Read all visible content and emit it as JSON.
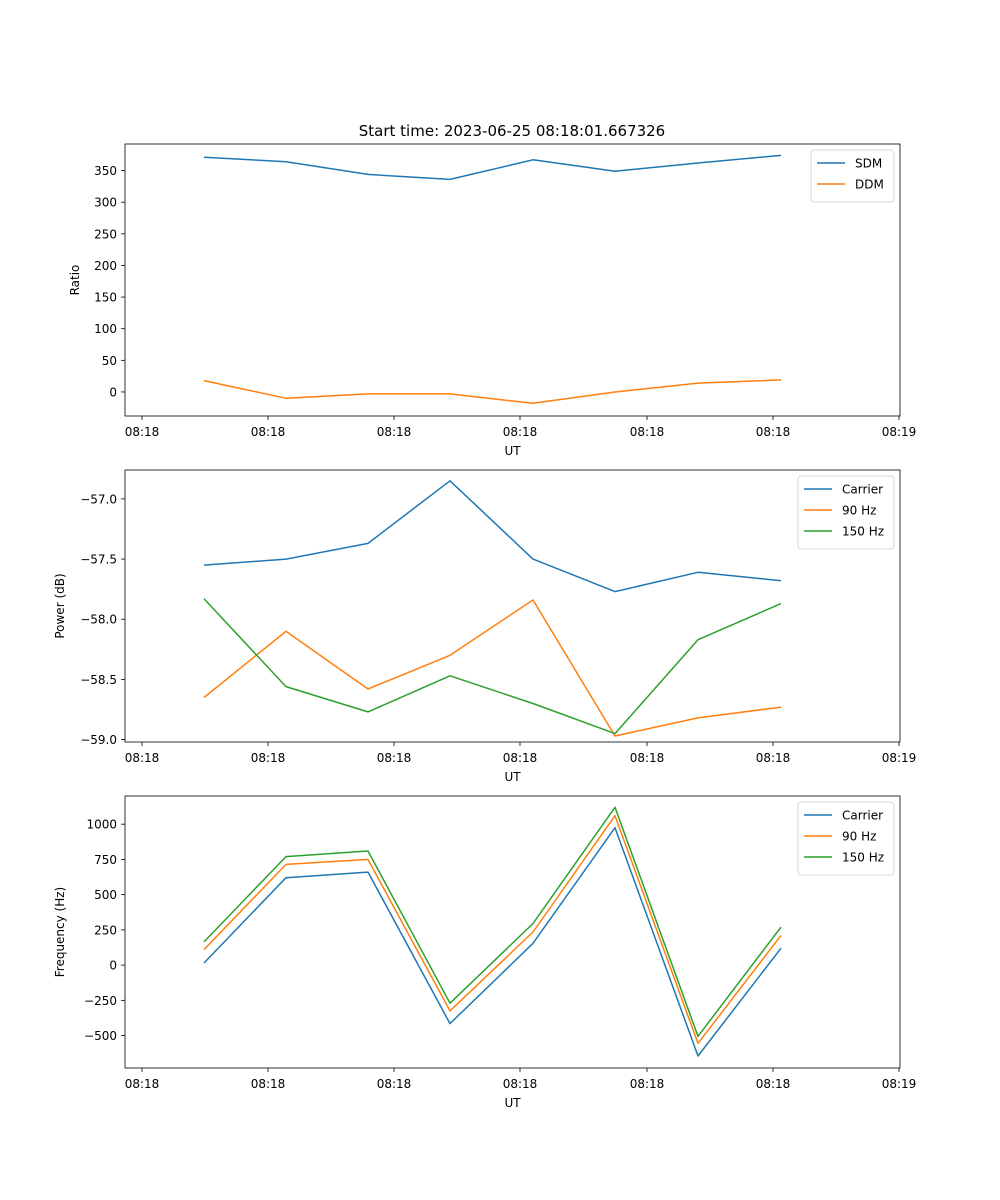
{
  "figure": {
    "title": "Start time: 2023-06-25 08:18:01.667326"
  },
  "chart_data": [
    {
      "type": "line",
      "xlabel": "UT",
      "ylabel": "Ratio",
      "xtick_labels": [
        "08:18",
        "08:18",
        "08:18",
        "08:18",
        "08:18",
        "08:18",
        "08:19"
      ],
      "ylim": [
        -38,
        392
      ],
      "yticks": [
        0,
        50,
        100,
        150,
        200,
        250,
        300,
        350
      ],
      "ytick_labels": [
        "0",
        "50",
        "100",
        "150",
        "200",
        "250",
        "300",
        "350"
      ],
      "legend_position": "top-right",
      "grid": false,
      "series": [
        {
          "name": "SDM",
          "color": "#1f77b4",
          "values": [
            371,
            364,
            344,
            336,
            367,
            349,
            362,
            374
          ]
        },
        {
          "name": "DDM",
          "color": "#ff7f0e",
          "values": [
            18,
            -10,
            -3,
            -3,
            -18,
            0,
            14,
            19
          ]
        }
      ]
    },
    {
      "type": "line",
      "xlabel": "UT",
      "ylabel": "Power (dB)",
      "xtick_labels": [
        "08:18",
        "08:18",
        "08:18",
        "08:18",
        "08:18",
        "08:18",
        "08:19"
      ],
      "ylim": [
        -59.02,
        -56.76
      ],
      "yticks": [
        -59.0,
        -58.5,
        -58.0,
        -57.5,
        -57.0
      ],
      "ytick_labels": [
        "−59.0",
        "−58.5",
        "−58.0",
        "−57.5",
        "−57.0"
      ],
      "legend_position": "top-right",
      "grid": false,
      "series": [
        {
          "name": "Carrier",
          "color": "#1f77b4",
          "values": [
            -57.55,
            -57.5,
            -57.37,
            -56.85,
            -57.5,
            -57.77,
            -57.61,
            -57.68
          ]
        },
        {
          "name": "90 Hz",
          "color": "#ff7f0e",
          "values": [
            -58.65,
            -58.1,
            -58.58,
            -58.3,
            -57.84,
            -58.97,
            -58.82,
            -58.73
          ]
        },
        {
          "name": "150 Hz",
          "color": "#2ca02c",
          "values": [
            -57.83,
            -58.56,
            -58.77,
            -58.47,
            -58.7,
            -58.95,
            -58.17,
            -57.87
          ]
        }
      ]
    },
    {
      "type": "line",
      "xlabel": "UT",
      "ylabel": "Frequency (Hz)",
      "xtick_labels": [
        "08:18",
        "08:18",
        "08:18",
        "08:18",
        "08:18",
        "08:18",
        "08:19"
      ],
      "ylim": [
        -730,
        1200
      ],
      "yticks": [
        -500,
        -250,
        0,
        250,
        500,
        750,
        1000
      ],
      "ytick_labels": [
        "−500",
        "−250",
        "0",
        "250",
        "500",
        "750",
        "1000"
      ],
      "legend_position": "top-right",
      "grid": false,
      "series": [
        {
          "name": "Carrier",
          "color": "#1f77b4",
          "values": [
            15,
            620,
            660,
            -415,
            155,
            975,
            -645,
            120
          ]
        },
        {
          "name": "90 Hz",
          "color": "#ff7f0e",
          "values": [
            110,
            715,
            750,
            -325,
            235,
            1060,
            -555,
            210
          ]
        },
        {
          "name": "150 Hz",
          "color": "#2ca02c",
          "values": [
            165,
            770,
            810,
            -270,
            295,
            1120,
            -505,
            270
          ]
        }
      ]
    }
  ]
}
